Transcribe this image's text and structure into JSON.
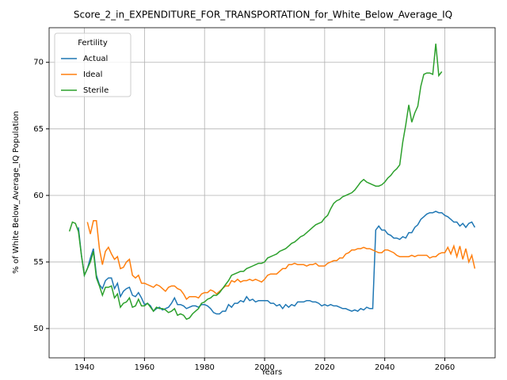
{
  "chart_data": {
    "type": "line",
    "title": "Score_2_in_EXPENDITURE_FOR_TRANSPORTATION_for_White_Below_Average_IQ",
    "xlabel": "Years",
    "ylabel": "% of White Below_Average_IQ Population",
    "legend_title": "Fertility",
    "legend": "upper left",
    "grid": true,
    "xlim": [
      1928.25,
      2076.75
    ],
    "ylim": [
      47.8,
      72.6
    ],
    "xticks": [
      1940,
      1960,
      1980,
      2000,
      2020,
      2040,
      2060
    ],
    "yticks": [
      50,
      55,
      60,
      65,
      70
    ],
    "x": [
      1935,
      1936,
      1937,
      1938,
      1939,
      1940,
      1941,
      1942,
      1943,
      1944,
      1945,
      1946,
      1947,
      1948,
      1949,
      1950,
      1951,
      1952,
      1953,
      1954,
      1955,
      1956,
      1957,
      1958,
      1959,
      1960,
      1961,
      1962,
      1963,
      1964,
      1965,
      1966,
      1967,
      1968,
      1969,
      1970,
      1971,
      1972,
      1973,
      1974,
      1975,
      1976,
      1977,
      1978,
      1979,
      1980,
      1981,
      1982,
      1983,
      1984,
      1985,
      1986,
      1987,
      1988,
      1989,
      1990,
      1991,
      1992,
      1993,
      1994,
      1995,
      1996,
      1997,
      1998,
      1999,
      2000,
      2001,
      2002,
      2003,
      2004,
      2005,
      2006,
      2007,
      2008,
      2009,
      2010,
      2011,
      2012,
      2013,
      2014,
      2015,
      2016,
      2017,
      2018,
      2019,
      2020,
      2021,
      2022,
      2023,
      2024,
      2025,
      2026,
      2027,
      2028,
      2029,
      2030,
      2031,
      2032,
      2033,
      2034,
      2035,
      2036,
      2037,
      2038,
      2039,
      2040,
      2041,
      2042,
      2043,
      2044,
      2045,
      2046,
      2047,
      2048,
      2049,
      2050,
      2051,
      2052,
      2053,
      2054,
      2055,
      2056,
      2057,
      2058,
      2059,
      2060,
      2061,
      2062,
      2063,
      2064,
      2065,
      2066,
      2067,
      2068,
      2069,
      2070
    ],
    "series": [
      {
        "name": "Actual",
        "color": "#1f77b4",
        "values": [
          null,
          null,
          null,
          57.6,
          55.5,
          54.0,
          54.5,
          55.3,
          56.0,
          54.0,
          53.3,
          53.0,
          53.6,
          53.8,
          53.8,
          53.0,
          53.4,
          52.4,
          52.8,
          53.0,
          53.1,
          52.5,
          52.4,
          52.7,
          52.3,
          51.8,
          51.9,
          51.7,
          51.3,
          51.5,
          51.6,
          51.4,
          51.5,
          51.6,
          51.9,
          52.3,
          51.8,
          51.8,
          51.7,
          51.5,
          51.6,
          51.7,
          51.7,
          51.6,
          51.8,
          51.8,
          51.7,
          51.5,
          51.2,
          51.1,
          51.1,
          51.3,
          51.3,
          51.8,
          51.6,
          51.9,
          51.9,
          52.1,
          52.0,
          52.4,
          52.1,
          52.2,
          52.0,
          52.1,
          52.1,
          52.1,
          52.1,
          51.9,
          51.9,
          51.7,
          51.8,
          51.5,
          51.8,
          51.6,
          51.8,
          51.7,
          52.0,
          52.0,
          52.0,
          52.1,
          52.1,
          52.0,
          52.0,
          51.9,
          51.7,
          51.8,
          51.7,
          51.8,
          51.7,
          51.7,
          51.6,
          51.5,
          51.5,
          51.4,
          51.3,
          51.4,
          51.3,
          51.5,
          51.4,
          51.6,
          51.5,
          51.5,
          57.4,
          57.7,
          57.4,
          57.4,
          57.1,
          57.0,
          56.8,
          56.8,
          56.7,
          56.9,
          56.8,
          57.2,
          57.2,
          57.6,
          57.8,
          58.2,
          58.4,
          58.6,
          58.7,
          58.7,
          58.8,
          58.7,
          58.7,
          58.5,
          58.4,
          58.2,
          58.0,
          58.0,
          57.7,
          57.9,
          57.6,
          57.9,
          58.0,
          57.6
        ]
      },
      {
        "name": "Ideal",
        "color": "#ff7f0e",
        "values": [
          null,
          null,
          null,
          null,
          null,
          null,
          58.0,
          57.1,
          58.1,
          58.1,
          56.0,
          54.8,
          55.8,
          56.1,
          55.6,
          55.2,
          55.4,
          54.5,
          54.6,
          55.0,
          55.2,
          54.0,
          53.8,
          54.0,
          53.4,
          53.4,
          53.3,
          53.2,
          53.1,
          53.3,
          53.2,
          53.0,
          52.8,
          53.1,
          53.2,
          53.2,
          53.0,
          52.9,
          52.6,
          52.2,
          52.4,
          52.4,
          52.4,
          52.3,
          52.6,
          52.7,
          52.7,
          52.9,
          52.8,
          52.6,
          52.8,
          53.0,
          53.2,
          53.2,
          53.6,
          53.5,
          53.7,
          53.5,
          53.6,
          53.6,
          53.7,
          53.6,
          53.7,
          53.6,
          53.5,
          53.7,
          54.0,
          54.1,
          54.1,
          54.1,
          54.3,
          54.5,
          54.5,
          54.8,
          54.8,
          54.9,
          54.8,
          54.8,
          54.8,
          54.7,
          54.8,
          54.8,
          54.9,
          54.7,
          54.7,
          54.7,
          54.9,
          55.0,
          55.1,
          55.1,
          55.3,
          55.3,
          55.6,
          55.7,
          55.9,
          55.9,
          56.0,
          56.0,
          56.1,
          56.0,
          56.0,
          55.9,
          55.8,
          55.7,
          55.7,
          55.9,
          55.9,
          55.8,
          55.7,
          55.5,
          55.4,
          55.4,
          55.4,
          55.4,
          55.5,
          55.4,
          55.5,
          55.5,
          55.5,
          55.5,
          55.3,
          55.4,
          55.4,
          55.6,
          55.7,
          55.7,
          56.1,
          55.6,
          56.2,
          55.4,
          56.2,
          55.2,
          56.0,
          55.0,
          55.5,
          54.5
        ]
      },
      {
        "name": "Sterile",
        "color": "#2ca02c",
        "values": [
          57.3,
          58.0,
          57.9,
          57.3,
          55.5,
          54.0,
          54.5,
          55.0,
          55.8,
          53.8,
          53.2,
          52.5,
          53.1,
          53.1,
          53.2,
          52.3,
          52.6,
          51.6,
          51.9,
          52.0,
          52.3,
          51.6,
          51.7,
          52.2,
          51.7,
          51.7,
          51.9,
          51.6,
          51.3,
          51.6,
          51.5,
          51.5,
          51.4,
          51.2,
          51.3,
          51.5,
          51.0,
          51.1,
          51.0,
          50.7,
          50.8,
          51.1,
          51.3,
          51.5,
          51.9,
          52.0,
          52.2,
          52.3,
          52.5,
          52.5,
          52.7,
          53.0,
          53.3,
          53.6,
          54.0,
          54.1,
          54.2,
          54.3,
          54.3,
          54.5,
          54.6,
          54.7,
          54.8,
          54.9,
          54.9,
          55.0,
          55.3,
          55.4,
          55.5,
          55.6,
          55.8,
          55.9,
          56.0,
          56.2,
          56.4,
          56.5,
          56.7,
          56.9,
          57.0,
          57.2,
          57.4,
          57.6,
          57.8,
          57.9,
          58.0,
          58.3,
          58.5,
          59.0,
          59.4,
          59.6,
          59.7,
          59.9,
          60.0,
          60.1,
          60.2,
          60.4,
          60.7,
          61.0,
          61.2,
          61.0,
          60.9,
          60.8,
          60.7,
          60.7,
          60.8,
          61.0,
          61.3,
          61.5,
          61.8,
          62.0,
          62.3,
          64.0,
          65.3,
          66.8,
          65.5,
          66.2,
          66.7,
          68.2,
          69.1,
          69.2,
          69.2,
          69.1,
          71.4,
          69.0,
          69.3,
          null,
          null,
          null,
          null,
          null,
          null,
          null,
          null,
          null,
          null,
          null
        ]
      }
    ]
  }
}
